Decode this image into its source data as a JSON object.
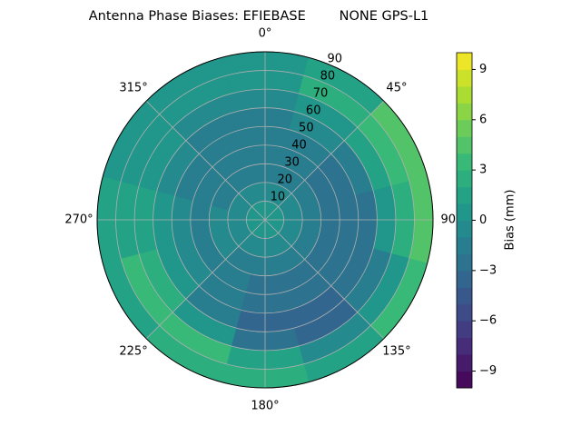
{
  "chart_data": {
    "type": "polar_contour",
    "title": "Antenna Phase Biases: EFIEBASE        NONE GPS-L1",
    "zenith": [
      5,
      15,
      25,
      35,
      45,
      55,
      65,
      75,
      85
    ],
    "azimuth": [
      0,
      30,
      60,
      90,
      120,
      150,
      180,
      210,
      240,
      270,
      300,
      330
    ],
    "values": [
      [
        0,
        0,
        0,
        0,
        0,
        0,
        0,
        0,
        0,
        0,
        0,
        0
      ],
      [
        -1,
        -1,
        -1,
        -1,
        -1,
        -1,
        -1,
        -1,
        -1,
        -1,
        -1,
        -1
      ],
      [
        -2,
        -2,
        -2,
        -2,
        -2,
        -2,
        -2,
        -2,
        -1,
        -1,
        -2,
        -2
      ],
      [
        -2,
        -2,
        -3,
        -3,
        -3,
        -3,
        -3,
        -2,
        -2,
        -2,
        -2,
        -2
      ],
      [
        -2,
        -2,
        -3,
        -3,
        -3,
        -3,
        -3,
        -2,
        -1,
        -1,
        -2,
        -2
      ],
      [
        -2,
        -1,
        -2,
        -3,
        -3,
        -4,
        -4,
        -2,
        0,
        0,
        -1,
        -2
      ],
      [
        -1,
        0,
        1,
        0,
        -2,
        -4,
        -3,
        0,
        2,
        1,
        0,
        -1
      ],
      [
        0,
        2,
        3,
        2,
        0,
        -1,
        1,
        3,
        3,
        1,
        0,
        0
      ],
      [
        0,
        1,
        4,
        4,
        3,
        1,
        2,
        2,
        1,
        1,
        0,
        0
      ]
    ],
    "rlim": [
      0,
      90
    ],
    "rticks": [
      10,
      20,
      30,
      40,
      50,
      60,
      70,
      80,
      90
    ],
    "thetaticks": [
      {
        "value": 0,
        "label": "0°"
      },
      {
        "value": 45,
        "label": "45°"
      },
      {
        "value": 90,
        "label": "90°"
      },
      {
        "value": 135,
        "label": "135°"
      },
      {
        "value": 180,
        "label": "180°"
      },
      {
        "value": 225,
        "label": "225°"
      },
      {
        "value": 270,
        "label": "270°"
      },
      {
        "value": 315,
        "label": "315°"
      }
    ],
    "grid": true,
    "colormap": "viridis",
    "levels": [
      -10,
      -9,
      -8,
      -7,
      -6,
      -5,
      -4,
      -3,
      -2,
      -1,
      0,
      1,
      2,
      3,
      4,
      5,
      6,
      7,
      8,
      9,
      10
    ],
    "colorbar_label": "Bias (mm)",
    "colorbar_ticks": [
      {
        "value": -9,
        "label": "−9"
      },
      {
        "value": -6,
        "label": "−6"
      },
      {
        "value": -3,
        "label": "−3"
      },
      0,
      3,
      6,
      9
    ]
  }
}
